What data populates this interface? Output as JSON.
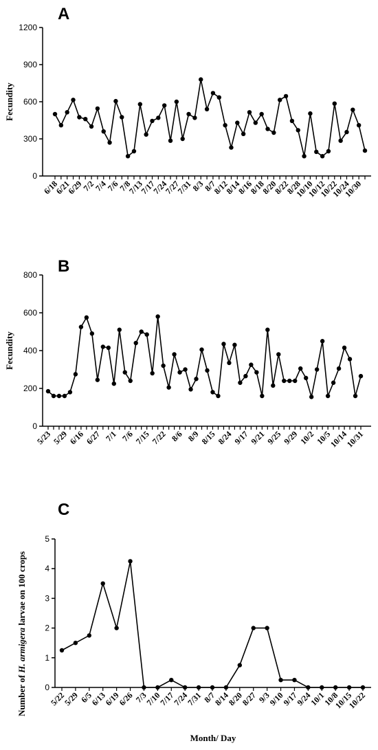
{
  "chart_data": [
    {
      "type": "line",
      "panel": "A",
      "ylabel": "Fecundity",
      "categories": [
        "6/18",
        null,
        "6/21",
        null,
        "6/29",
        null,
        "7/2",
        null,
        "7/4",
        null,
        "7/6",
        null,
        "7/8",
        null,
        "7/13",
        null,
        "7/17",
        null,
        "7/24",
        null,
        "7/27",
        null,
        "7/31",
        null,
        "8/3",
        null,
        "8/7",
        null,
        "8/12",
        null,
        "8/14",
        null,
        "8/16",
        null,
        "8/18",
        null,
        "8/20",
        null,
        "8/22",
        null,
        "8/28",
        null,
        "10/10",
        null,
        "10/12",
        null,
        "10/22",
        null,
        "10/24",
        null,
        "10/30",
        null
      ],
      "series": [
        {
          "color": "#000000",
          "values": [
            500,
            410,
            515,
            615,
            475,
            460,
            400,
            545,
            360,
            270,
            605,
            475,
            160,
            200,
            580,
            335,
            445,
            470,
            570,
            285,
            600,
            300,
            500,
            470,
            780,
            540,
            670,
            635,
            410,
            230,
            430,
            340,
            515,
            430,
            500,
            380,
            350,
            615,
            645,
            445,
            370,
            160,
            505,
            195,
            160,
            200,
            585,
            285,
            355,
            535,
            410,
            205
          ]
        }
      ],
      "ylim": [
        0,
        1200
      ],
      "yticks": [
        0,
        300,
        600,
        900,
        1200
      ]
    },
    {
      "type": "line",
      "panel": "B",
      "ylabel": "Fecundity",
      "categories": [
        "5/23",
        null,
        null,
        "5/29",
        null,
        null,
        "6/16",
        null,
        null,
        "6/27",
        null,
        null,
        "7/1",
        null,
        null,
        "7/6",
        null,
        null,
        "7/15",
        null,
        null,
        "7/22",
        null,
        null,
        "8/6",
        null,
        null,
        "8/9",
        null,
        null,
        "8/15",
        null,
        null,
        "8/24",
        null,
        null,
        "9/17",
        null,
        null,
        "9/21",
        null,
        null,
        "9/25",
        null,
        null,
        "9/29",
        null,
        null,
        "10/2",
        null,
        null,
        "10/5",
        null,
        null,
        "10/14",
        null,
        null,
        "10/31"
      ],
      "series": [
        {
          "color": "#000000",
          "values": [
            185,
            160,
            160,
            160,
            180,
            275,
            525,
            575,
            490,
            245,
            420,
            415,
            225,
            510,
            285,
            240,
            440,
            500,
            485,
            280,
            580,
            320,
            205,
            380,
            285,
            300,
            195,
            250,
            405,
            295,
            180,
            160,
            435,
            335,
            430,
            230,
            265,
            325,
            285,
            160,
            510,
            215,
            380,
            240,
            240,
            240,
            305,
            255,
            155,
            300,
            450,
            160,
            230,
            305,
            415,
            355,
            160,
            265
          ]
        }
      ],
      "ylim": [
        0,
        800
      ],
      "yticks": [
        0,
        200,
        400,
        600,
        800
      ]
    },
    {
      "type": "line",
      "panel": "C",
      "ylabel_parts": [
        "Number of ",
        "H. armigera",
        " larvae on 100 crops"
      ],
      "xlabel": "Month/ Day",
      "categories": [
        "5/22",
        "5/29",
        "6/5",
        "6/13",
        "6/19",
        "6/26",
        "7/3",
        "7/10",
        "7/17",
        "7/24",
        "7/31",
        "8/7",
        "8/14",
        "8/20",
        "8/27",
        "9/3",
        "9/10",
        "9/17",
        "9/24",
        "10/1",
        "10/8",
        "10/15",
        "10/22"
      ],
      "series": [
        {
          "color": "#000000",
          "values": [
            1.25,
            1.5,
            1.75,
            3.5,
            2,
            4.25,
            0,
            0,
            0.25,
            0,
            0,
            0,
            0,
            0.75,
            2,
            2,
            0.25,
            0.25,
            0,
            0,
            0,
            0,
            0
          ]
        }
      ],
      "ylim": [
        0,
        5
      ],
      "yticks": [
        0,
        1,
        2,
        3,
        4,
        5
      ]
    }
  ]
}
